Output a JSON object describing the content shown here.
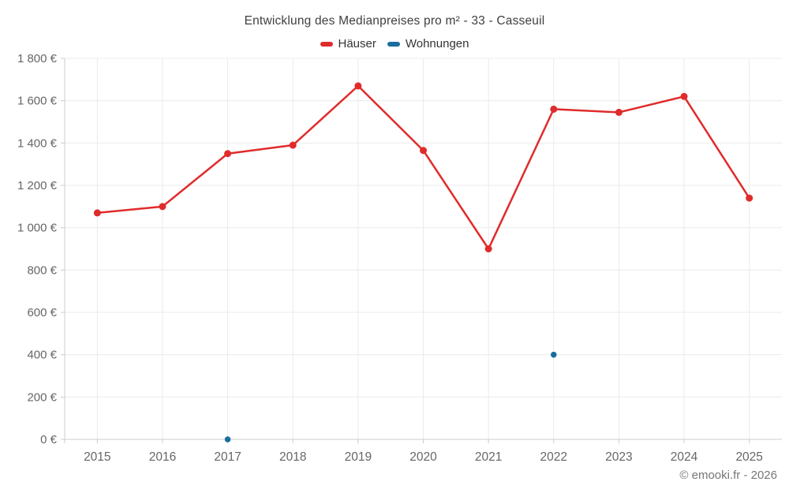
{
  "footer": {
    "credit": "© emooki.fr - 2026"
  },
  "colors": {
    "background": "#ffffff",
    "grid": "#ebebeb",
    "axis": "#cccccc",
    "tick_label": "#666666",
    "title": "#3f3f3f",
    "legend_text": "#333333",
    "footer_text": "#777777",
    "hauser_red": "#e02b2b",
    "wohnungen_blue": "#1a6d9e"
  },
  "chart_data": {
    "type": "line",
    "title": "Entwicklung des Medianpreises pro m² - 33 - Casseuil",
    "xlabel": "",
    "ylabel": "",
    "categories": [
      "2015",
      "2016",
      "2017",
      "2018",
      "2019",
      "2020",
      "2021",
      "2022",
      "2023",
      "2024",
      "2025"
    ],
    "series": [
      {
        "name": "Häuser",
        "color": "#e02b2b",
        "values": [
          1070,
          1100,
          1350,
          1390,
          1670,
          1365,
          900,
          1560,
          1545,
          1620,
          1140
        ]
      },
      {
        "name": "Wohnungen",
        "color": "#1a6d9e",
        "values": [
          null,
          null,
          0,
          null,
          null,
          null,
          null,
          400,
          null,
          null,
          null
        ]
      }
    ],
    "ylim": [
      0,
      1800
    ],
    "ytick_step": 200,
    "ytick_labels": [
      "0 €",
      "200 €",
      "400 €",
      "600 €",
      "800 €",
      "1 000 €",
      "1 200 €",
      "1 400 €",
      "1 600 €",
      "1 800 €"
    ],
    "grid": true,
    "legend_position": "top"
  }
}
